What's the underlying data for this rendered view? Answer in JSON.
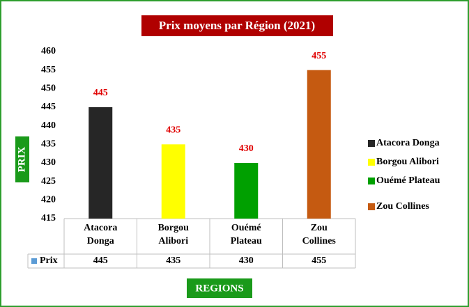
{
  "chart_data": {
    "type": "bar",
    "title": "Prix moyens par Région (2021)",
    "y_label": "PRIX",
    "x_label": "REGIONS",
    "categories": [
      "Atacora Donga",
      "Borgou Alibori",
      "Ouémé Plateau",
      "Zou Collines"
    ],
    "colors": [
      "#262626",
      "#ffff00",
      "#00a000",
      "#c55a11"
    ],
    "series": [
      {
        "name": "Prix",
        "color": "#5b9bd5",
        "values": [
          445,
          435,
          430,
          455
        ]
      }
    ],
    "ylim": [
      415,
      460
    ],
    "yticks": [
      415,
      420,
      425,
      430,
      435,
      440,
      445,
      450,
      455,
      460
    ],
    "grid": false,
    "legend": "right",
    "data_labels": true,
    "data_table": true
  }
}
